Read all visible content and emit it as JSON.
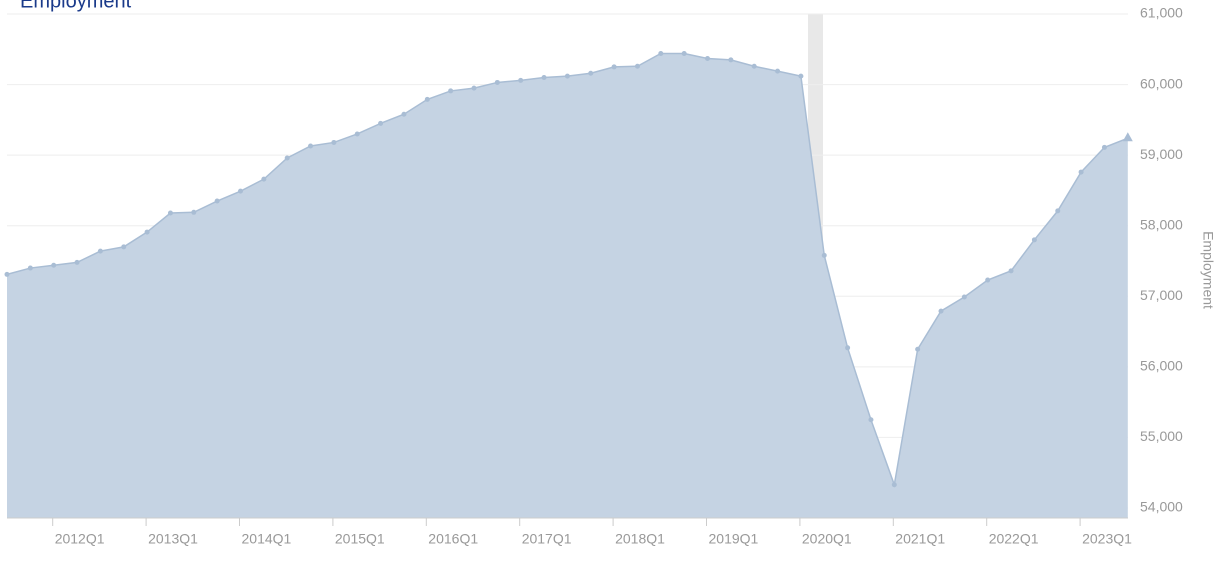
{
  "chart_data": {
    "type": "area",
    "title": "Employment",
    "y_label": "Employment",
    "categories": [
      null,
      null,
      "2012Q1",
      null,
      null,
      null,
      "2013Q1",
      null,
      null,
      null,
      "2014Q1",
      null,
      null,
      null,
      "2015Q1",
      null,
      null,
      null,
      "2016Q1",
      null,
      null,
      null,
      "2017Q1",
      null,
      null,
      null,
      "2018Q1",
      null,
      null,
      null,
      "2019Q1",
      null,
      null,
      null,
      "2020Q1",
      null,
      null,
      null,
      "2021Q1",
      null,
      null,
      null,
      "2022Q1",
      null,
      null,
      null,
      "2023Q1",
      null,
      null
    ],
    "values": [
      57310,
      57400,
      57440,
      57480,
      57640,
      57700,
      57910,
      58180,
      58190,
      58350,
      58490,
      58660,
      58960,
      59130,
      59180,
      59300,
      59450,
      59580,
      59790,
      59910,
      59950,
      60030,
      60060,
      60100,
      60120,
      60160,
      60250,
      60260,
      60440,
      60440,
      60370,
      60350,
      60260,
      60190,
      60120,
      57580,
      56270,
      55250,
      54330,
      56250,
      56790,
      56990,
      57230,
      57360,
      57800,
      58210,
      58760,
      59110,
      59240
    ],
    "color": "#c5d3e3",
    "line_color": "#a9bdd4",
    "ylim": [
      54000,
      61000
    ],
    "yticks": [
      {
        "value": 54000,
        "label": "54,000"
      },
      {
        "value": 55000,
        "label": "55,000"
      },
      {
        "value": 56000,
        "label": "56,000"
      },
      {
        "value": 57000,
        "label": "57,000"
      },
      {
        "value": 58000,
        "label": "58,000"
      },
      {
        "value": 59000,
        "label": "59,000"
      },
      {
        "value": 60000,
        "label": "60,000"
      },
      {
        "value": 61000,
        "label": "61,000"
      }
    ],
    "grid": true
  }
}
